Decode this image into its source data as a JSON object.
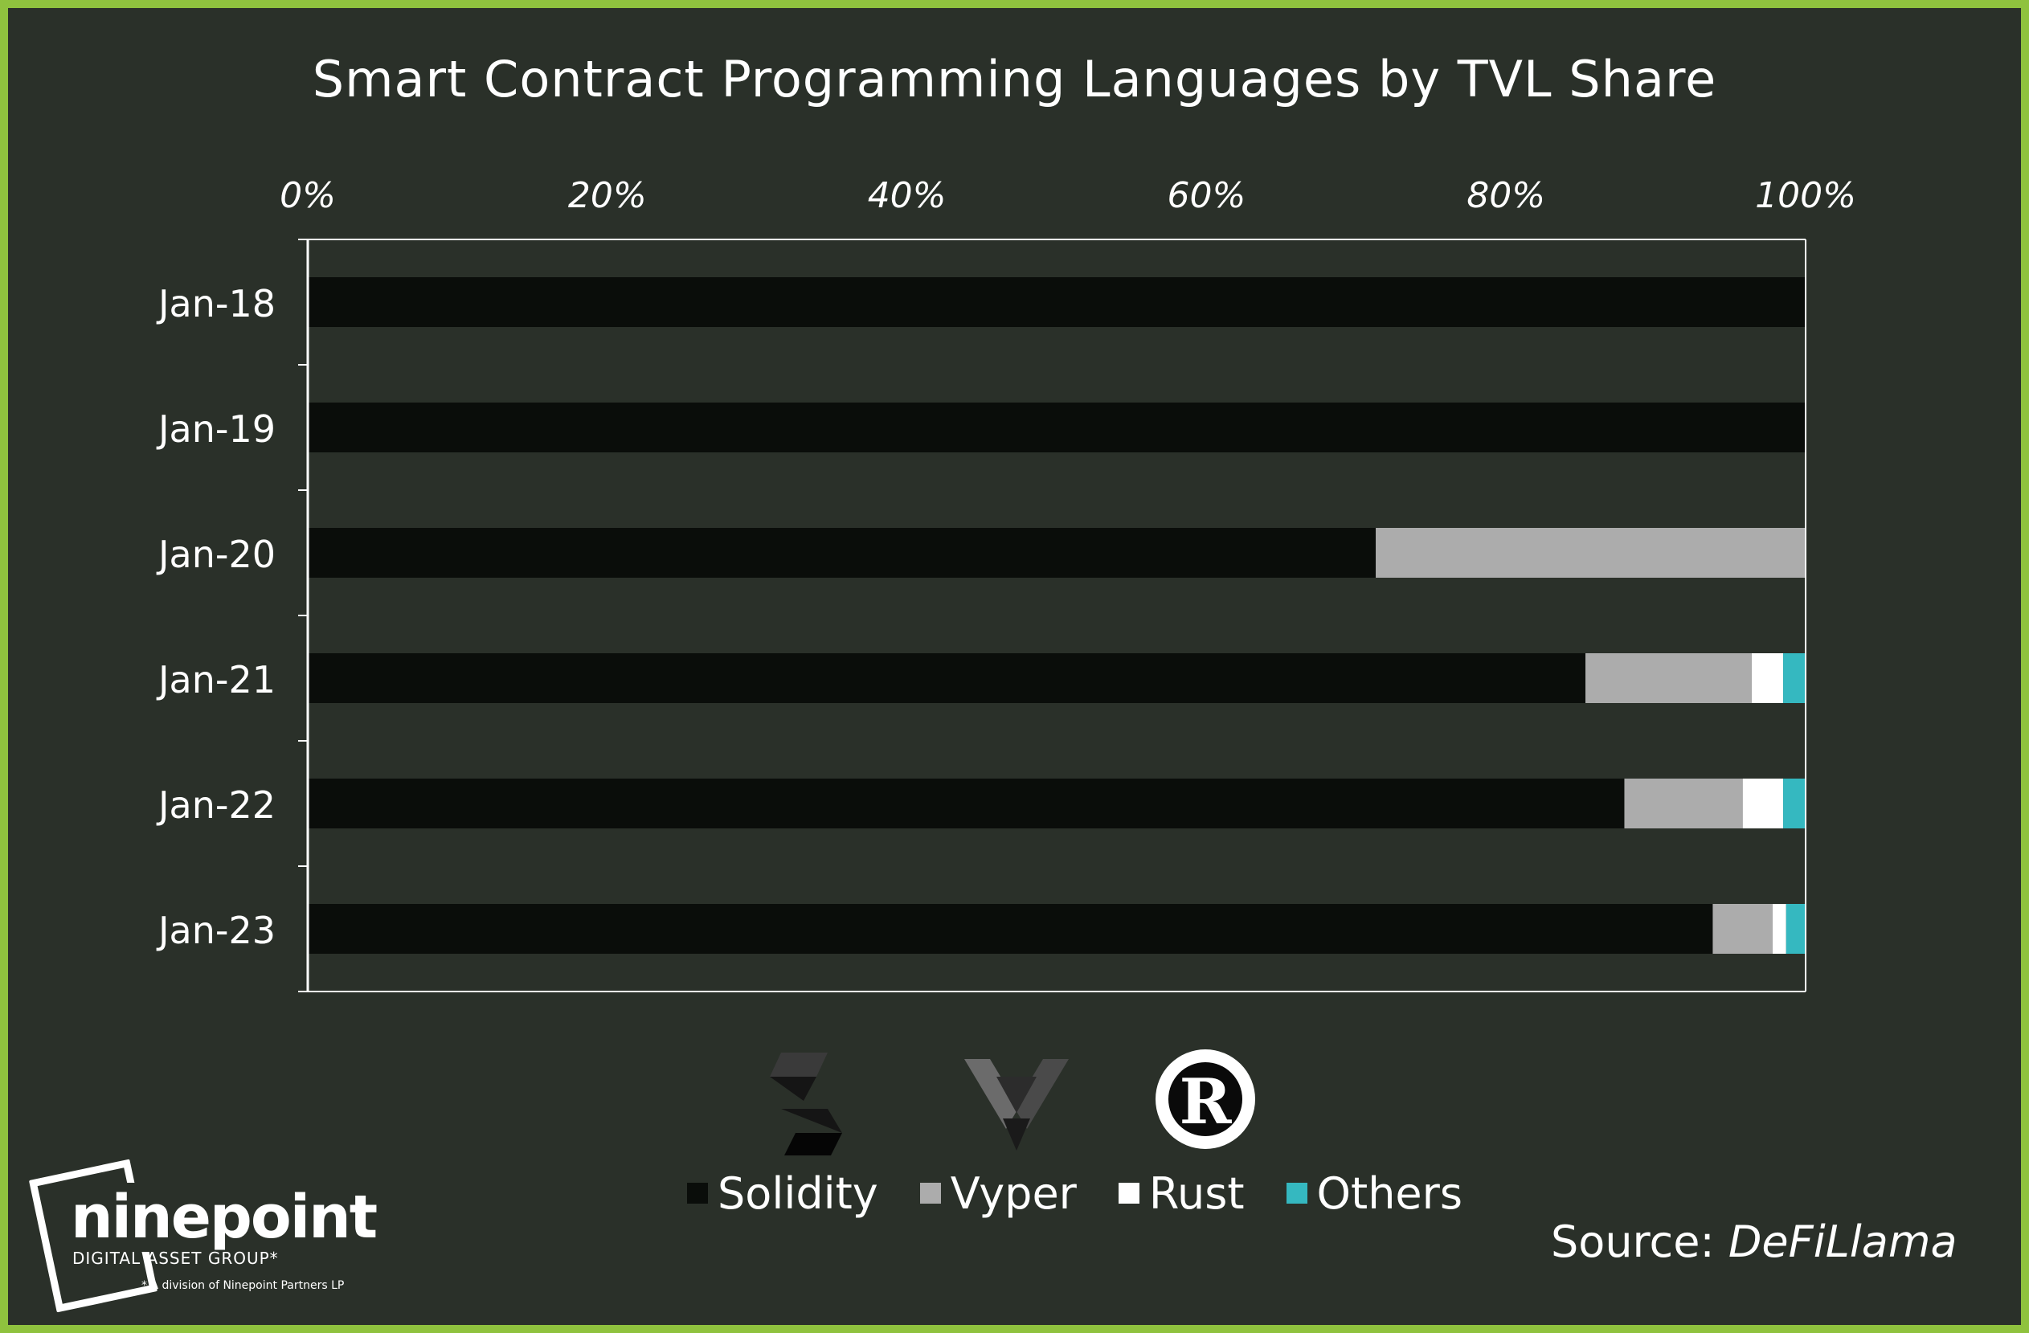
{
  "chart_data": {
    "type": "bar",
    "orientation": "horizontal",
    "stacked": true,
    "title": "Smart Contract Programming Languages by TVL Share",
    "xlim": [
      0,
      100
    ],
    "x_ticks": [
      "0%",
      "20%",
      "40%",
      "60%",
      "80%",
      "100%"
    ],
    "categories": [
      "Jan-18",
      "Jan-19",
      "Jan-20",
      "Jan-21",
      "Jan-22",
      "Jan-23"
    ],
    "series": [
      {
        "name": "Solidity",
        "color": "#0a0d0a",
        "values": [
          100,
          100,
          71.3,
          85.3,
          87.9,
          93.8
        ]
      },
      {
        "name": "Vyper",
        "color": "#acacac",
        "values": [
          0,
          0,
          28.7,
          11.1,
          7.9,
          4.0
        ]
      },
      {
        "name": "Rust",
        "color": "#ffffff",
        "values": [
          0,
          0,
          0,
          2.1,
          2.7,
          0.9
        ]
      },
      {
        "name": "Others",
        "color": "#35b8c0",
        "values": [
          0,
          0,
          0,
          1.5,
          1.5,
          1.3
        ]
      }
    ],
    "legend_position": "bottom",
    "grid": false
  },
  "source": {
    "label": "Source:",
    "name": "DeFiLlama"
  },
  "branding": {
    "name": "ninepoint",
    "subtitle": "DIGITAL ASSET GROUP*",
    "note": "* A division of Ninepoint Partners LP"
  },
  "logos": [
    "solidity-logo",
    "vyper-logo",
    "rust-logo"
  ]
}
